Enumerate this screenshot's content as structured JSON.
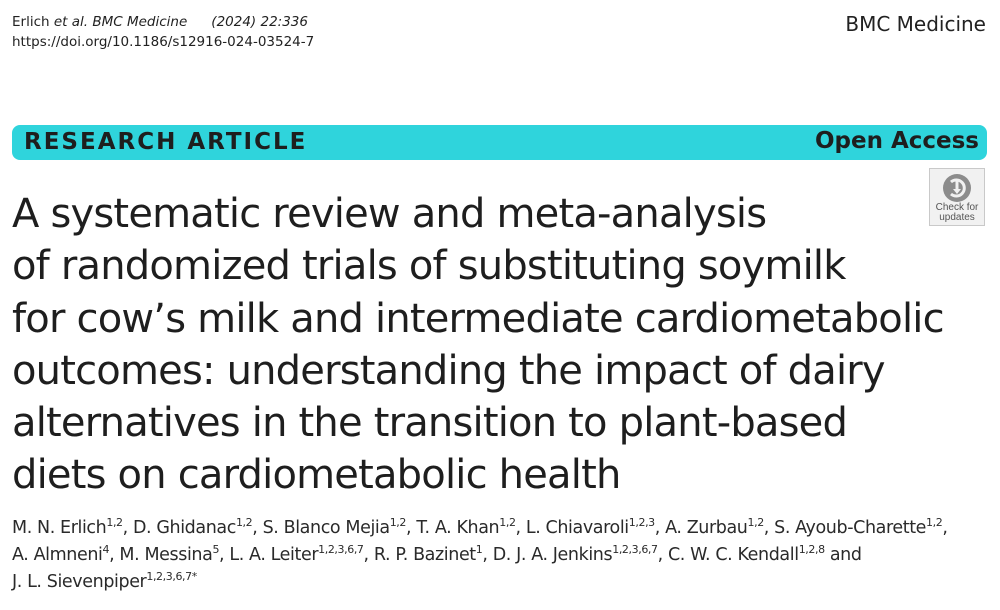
{
  "header": {
    "citation_authors": "Erlich ",
    "citation_journal": "et al. BMC Medicine",
    "citation_year_volume": "(2024) 22:336",
    "doi": "https://doi.org/10.1186/s12916-024-03524-7",
    "journal_name": "BMC Medicine"
  },
  "banner": {
    "article_type": "RESEARCH ARTICLE",
    "access": "Open Access"
  },
  "check_updates": {
    "line1": "Check for",
    "line2": "updates",
    "icon": "check-for-updates-icon"
  },
  "title": {
    "lines": [
      "A systematic review and meta-analysis",
      "of randomized trials of substituting soymilk",
      "for cow’s milk and intermediate cardiometabolic",
      "outcomes: understanding the impact of dairy",
      "alternatives in the transition to plant-based",
      "diets on cardiometabolic health"
    ]
  },
  "authors": [
    {
      "name": "M. N. Erlich",
      "aff": "1,2",
      "sep": ", "
    },
    {
      "name": "D. Ghidanac",
      "aff": "1,2",
      "sep": ", "
    },
    {
      "name": "S. Blanco Mejia",
      "aff": "1,2",
      "sep": ", "
    },
    {
      "name": "T. A. Khan",
      "aff": "1,2",
      "sep": ", "
    },
    {
      "name": "L. Chiavaroli",
      "aff": "1,2,3",
      "sep": ", "
    },
    {
      "name": "A. Zurbau",
      "aff": "1,2",
      "sep": ", "
    },
    {
      "name": "S. Ayoub-Charette",
      "aff": "1,2",
      "sep": ","
    },
    {
      "name": "A. Almneni",
      "aff": "4",
      "sep": ", "
    },
    {
      "name": "M. Messina",
      "aff": "5",
      "sep": ", "
    },
    {
      "name": "L. A. Leiter",
      "aff": "1,2,3,6,7",
      "sep": ", "
    },
    {
      "name": "R. P. Bazinet",
      "aff": "1",
      "sep": ", "
    },
    {
      "name": "D. J. A. Jenkins",
      "aff": "1,2,3,6,7",
      "sep": ", "
    },
    {
      "name": "C. W. C. Kendall",
      "aff": "1,2,8",
      "sep": " and"
    },
    {
      "name": "J. L. Sievenpiper",
      "aff": "1,2,3,6,7*",
      "sep": ""
    }
  ]
}
